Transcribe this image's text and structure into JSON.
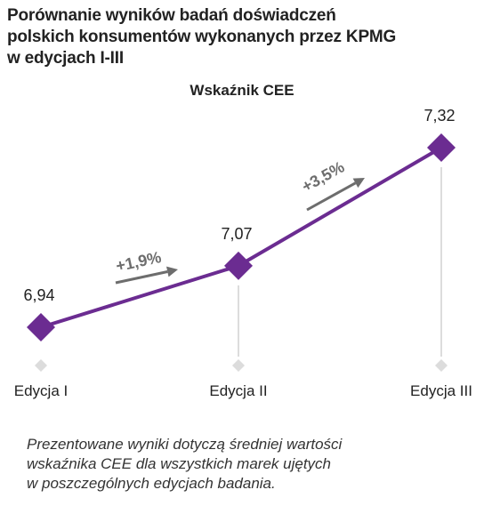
{
  "title": "Porównanie wyników badań doświadczeń\npolskich konsumentów wykonanych przez KPMG\nw edycjach I-III",
  "note_lines": [
    "Prezentowane wyniki dotyczą średniej wartości",
    "wskaźnika CEE dla wszystkich marek ujętych",
    "w poszczególnych edycjach badania."
  ],
  "colors": {
    "line": "#6b2c91",
    "marker": "#6b2c91",
    "arrow": "#6d6d6d",
    "guide": "#dcdcdc",
    "text": "#222222"
  },
  "chart_data": {
    "type": "line",
    "title": "Wskaźnik CEE",
    "categories": [
      "Edycja I",
      "Edycja II",
      "Edycja III"
    ],
    "series": [
      {
        "values": [
          6.94,
          7.07,
          7.32
        ],
        "labels": [
          "6,94",
          "7,07",
          "7,32"
        ]
      }
    ],
    "changes": [
      "+1,9%",
      "+3,5%"
    ],
    "grid": false,
    "legend": "none"
  }
}
